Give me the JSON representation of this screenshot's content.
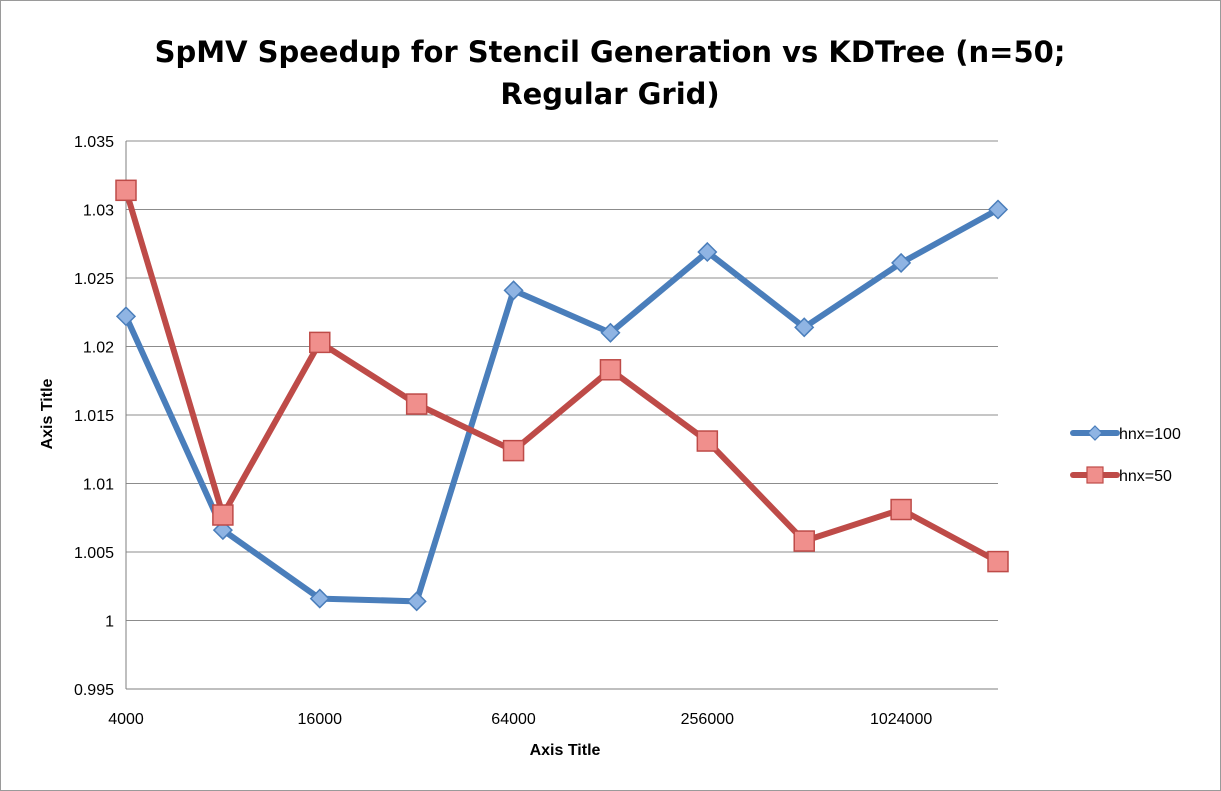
{
  "chart_data": {
    "type": "line",
    "title": "SpMV Speedup for Stencil Generation vs KDTree (n=50;",
    "title_line2": "Regular Grid)",
    "xlabel": "Axis Title",
    "ylabel": "Axis Title",
    "ylim": [
      0.995,
      1.035
    ],
    "yticks": [
      "0.995",
      "1",
      "1.005",
      "1.01",
      "1.015",
      "1.02",
      "1.025",
      "1.03",
      "1.035"
    ],
    "x_scale": "log2",
    "xlim": [
      4000,
      2048000
    ],
    "xticks": [
      "4000",
      "16000",
      "64000",
      "256000",
      "1024000"
    ],
    "x": [
      4000,
      8000,
      16000,
      32000,
      64000,
      128000,
      256000,
      512000,
      1024000,
      2048000
    ],
    "grid": "horizontal",
    "legend_position": "right",
    "series": [
      {
        "name": "hnx=100",
        "color": "#4a7ebb",
        "marker": "diamond",
        "values": [
          1.0222,
          1.0066,
          1.0016,
          1.0014,
          1.0241,
          1.021,
          1.0269,
          1.0214,
          1.0261,
          1.03
        ]
      },
      {
        "name": "hnx=50",
        "color": "#be4b48",
        "marker": "square",
        "values": [
          1.0314,
          1.0077,
          1.0203,
          1.0158,
          1.0124,
          1.0183,
          1.0131,
          1.0058,
          1.0081,
          1.0043
        ]
      }
    ]
  }
}
